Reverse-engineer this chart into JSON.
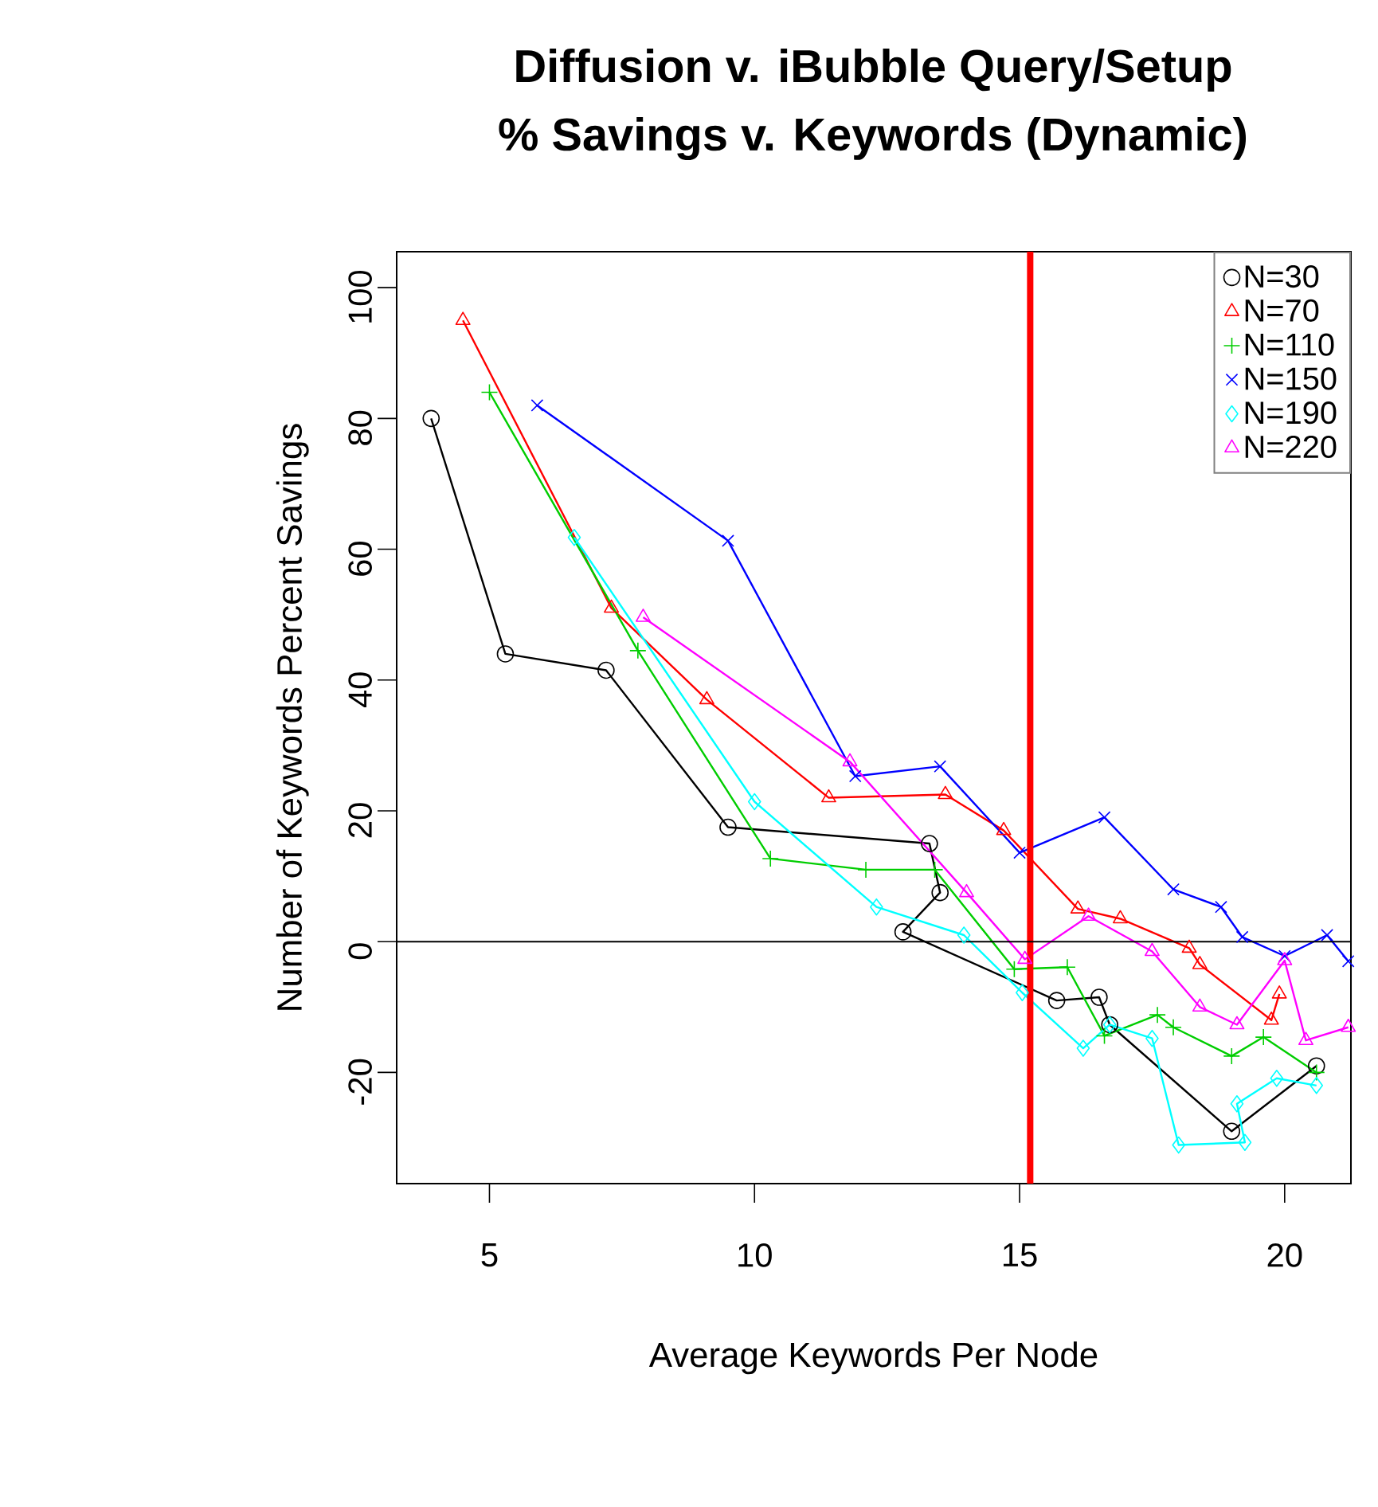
{
  "chart_data": {
    "type": "line",
    "title": "Diffusion v. iBubble Query/Setup",
    "subtitle": "% Savings v. Keywords (Dynamic)",
    "xlabel": "Average Keywords Per Node",
    "ylabel": "Number of Keywords Percent Savings",
    "xlim": [
      3.25,
      21.25
    ],
    "ylim": [
      -37,
      105.5
    ],
    "xticks": [
      5,
      10,
      15,
      20
    ],
    "yticks": [
      -20,
      0,
      20,
      40,
      60,
      80,
      100
    ],
    "legend": "top right",
    "grid": false,
    "ref_lines": [
      {
        "axis": "x",
        "value": 15.2,
        "color": "#ff0000"
      },
      {
        "axis": "y",
        "value": 0,
        "color": "#000000"
      }
    ],
    "series": [
      {
        "name": "N=30",
        "color": "#000000",
        "marker": "circle",
        "x": [
          3.9,
          5.3,
          7.2,
          9.5,
          13.3,
          13.5,
          12.8,
          15.7,
          16.5,
          16.7,
          19.0,
          20.6
        ],
        "values": [
          80,
          44,
          41.5,
          17.5,
          15,
          7.5,
          1.5,
          -9,
          -8.5,
          -12.7,
          -29,
          -19
        ]
      },
      {
        "name": "N=70",
        "color": "#ff0000",
        "marker": "triangle",
        "x": [
          4.5,
          7.3,
          9.1,
          11.4,
          13.6,
          14.7,
          16.1,
          16.9,
          18.2,
          18.4,
          19.75,
          19.9
        ],
        "values": [
          95,
          51,
          37,
          22,
          22.5,
          17,
          5,
          3.5,
          -1,
          -3.5,
          -12,
          -8
        ]
      },
      {
        "name": "N=110",
        "color": "#00cd00",
        "marker": "plus",
        "x": [
          5.0,
          7.8,
          10.3,
          12.1,
          13.4,
          14.9,
          15.9,
          16.6,
          17.6,
          17.9,
          19.0,
          19.6,
          20.6
        ],
        "values": [
          84,
          44.5,
          12.7,
          11,
          11,
          -4.2,
          -3.9,
          -14.4,
          -11.2,
          -13.1,
          -17.5,
          -14.6,
          -20
        ]
      },
      {
        "name": "N=150",
        "color": "#0000ff",
        "marker": "cross",
        "x": [
          5.9,
          9.5,
          11.9,
          13.5,
          15.0,
          16.6,
          17.9,
          18.8,
          19.2,
          20.0,
          20.8,
          21.2
        ],
        "values": [
          82,
          61.3,
          25.3,
          26.8,
          13.6,
          19,
          8,
          5.3,
          0.7,
          -2.2,
          1,
          -3
        ]
      },
      {
        "name": "N=190",
        "color": "#00ffff",
        "marker": "diamond",
        "x": [
          6.6,
          10.0,
          12.3,
          13.95,
          15.05,
          16.2,
          16.7,
          17.5,
          18.0,
          19.25,
          19.1,
          19.85,
          20.6
        ],
        "values": [
          61.8,
          21.4,
          5.3,
          1,
          -7.8,
          -16.3,
          -12.7,
          -14.8,
          -31.1,
          -30.7,
          -24.8,
          -20.9,
          -22
        ]
      },
      {
        "name": "N=220",
        "color": "#ff00ff",
        "marker": "triangle_down",
        "x": [
          7.9,
          11.8,
          14.0,
          15.1,
          16.3,
          17.5,
          18.4,
          19.1,
          20.0,
          20.4,
          21.2
        ],
        "values": [
          49.6,
          27.5,
          7.5,
          -2.7,
          3.9,
          -1.5,
          -10,
          -12.7,
          -2.9,
          -15.1,
          -13.1
        ]
      }
    ]
  }
}
